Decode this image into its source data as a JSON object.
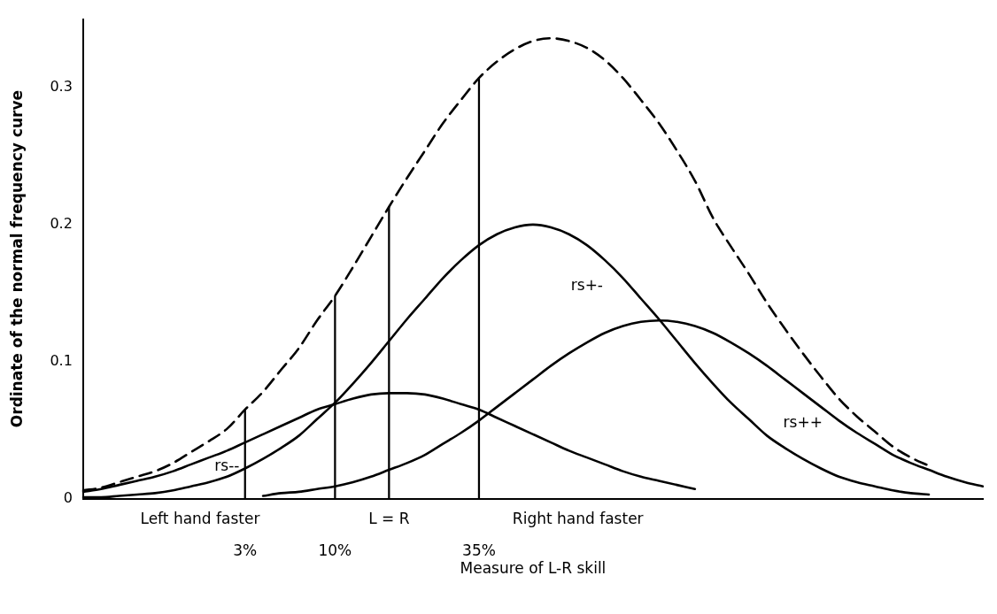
{
  "chart_data": {
    "type": "line",
    "xlabel": "Measure of L-R skill",
    "ylabel": "Ordinate of the normal frequency curve",
    "categories": [
      null,
      null,
      null,
      null,
      null,
      null,
      null,
      null,
      null,
      null,
      null,
      null,
      null,
      null,
      null,
      null,
      null,
      null,
      null,
      null,
      null,
      null,
      null,
      null,
      null,
      null,
      null,
      null,
      null,
      null,
      null,
      null,
      null,
      null,
      null,
      null,
      null,
      null,
      null,
      null,
      null,
      null,
      null,
      null,
      null,
      null,
      null,
      null,
      null,
      null,
      null
    ],
    "ylim": [
      0,
      0.35
    ],
    "yticks": [
      0,
      0.1,
      0.2,
      0.3
    ],
    "grid": false,
    "legend": false,
    "marker": "none",
    "tick_labels": "y",
    "annotations": [
      "Left hand faster",
      "L = R",
      "Right hand faster",
      "3%",
      "10%",
      "35%"
    ],
    "series": [
      {
        "color": "#000000",
        "line_style": "dashed",
        "values": [
          0.006,
          0.008,
          0.012,
          0.016,
          0.02,
          0.026,
          0.034,
          0.042,
          0.051,
          0.065,
          0.078,
          0.094,
          0.11,
          0.13,
          0.148,
          0.169,
          0.191,
          0.213,
          0.234,
          0.254,
          0.274,
          0.291,
          0.307,
          0.319,
          0.328,
          0.334,
          0.336,
          0.334,
          0.329,
          0.32,
          0.307,
          0.291,
          0.274,
          0.254,
          0.232,
          0.205,
          0.184,
          0.164,
          0.143,
          0.124,
          0.106,
          0.089,
          0.073,
          0.06,
          0.049,
          0.038,
          0.03,
          0.024,
          null,
          null,
          null
        ]
      },
      {
        "name": "rs--",
        "color": "#000000",
        "line_style": "solid",
        "values": [
          0.005,
          0.007,
          0.01,
          0.013,
          0.016,
          0.02,
          0.025,
          0.03,
          0.035,
          0.041,
          0.047,
          0.053,
          0.059,
          0.065,
          0.069,
          0.073,
          0.076,
          0.077,
          0.077,
          0.076,
          0.073,
          0.069,
          0.065,
          0.059,
          0.053,
          0.047,
          0.041,
          0.035,
          0.03,
          0.025,
          0.02,
          0.016,
          0.013,
          0.01,
          0.007,
          null,
          null,
          null,
          null,
          null,
          null,
          null,
          null,
          null,
          null,
          null,
          null,
          null,
          null,
          null,
          null
        ]
      },
      {
        "name": "rs+-",
        "color": "#000000",
        "line_style": "solid",
        "values": [
          0.001,
          0.001,
          0.002,
          0.003,
          0.004,
          0.006,
          0.009,
          0.012,
          0.016,
          0.022,
          0.029,
          0.037,
          0.046,
          0.058,
          0.07,
          0.084,
          0.099,
          0.115,
          0.131,
          0.146,
          0.161,
          0.174,
          0.185,
          0.193,
          0.198,
          0.2,
          0.198,
          0.193,
          0.185,
          0.174,
          0.161,
          0.146,
          0.131,
          0.115,
          0.099,
          0.084,
          0.07,
          0.058,
          0.046,
          0.037,
          0.029,
          0.022,
          0.016,
          0.012,
          0.009,
          0.006,
          0.004,
          0.003,
          null,
          null,
          null
        ]
      },
      {
        "name": "rs++",
        "color": "#000000",
        "line_style": "solid",
        "values": [
          null,
          null,
          null,
          null,
          null,
          null,
          null,
          null,
          null,
          null,
          0.002,
          0.004,
          0.005,
          0.007,
          0.009,
          0.012,
          0.016,
          0.021,
          0.026,
          0.032,
          0.04,
          0.048,
          0.057,
          0.067,
          0.077,
          0.087,
          0.097,
          0.106,
          0.114,
          0.121,
          0.126,
          0.129,
          0.13,
          0.129,
          0.126,
          0.121,
          0.114,
          0.106,
          0.097,
          0.087,
          0.077,
          0.067,
          0.057,
          0.048,
          0.04,
          0.032,
          0.026,
          0.021,
          0.016,
          0.012,
          0.009
        ]
      },
      {
        "type": "bar",
        "color": "#000000",
        "values": [
          null,
          null,
          null,
          null,
          null,
          null,
          null,
          null,
          null,
          0.065,
          null,
          null,
          null,
          null,
          0.148,
          null,
          null,
          0.213,
          null,
          null,
          null,
          null,
          0.307,
          null,
          null,
          null,
          null,
          null,
          null,
          null,
          null,
          null,
          null,
          null,
          null,
          null,
          null,
          null,
          null,
          null,
          null,
          null,
          null,
          null,
          null,
          null,
          null,
          null,
          null,
          null,
          null
        ]
      }
    ]
  }
}
